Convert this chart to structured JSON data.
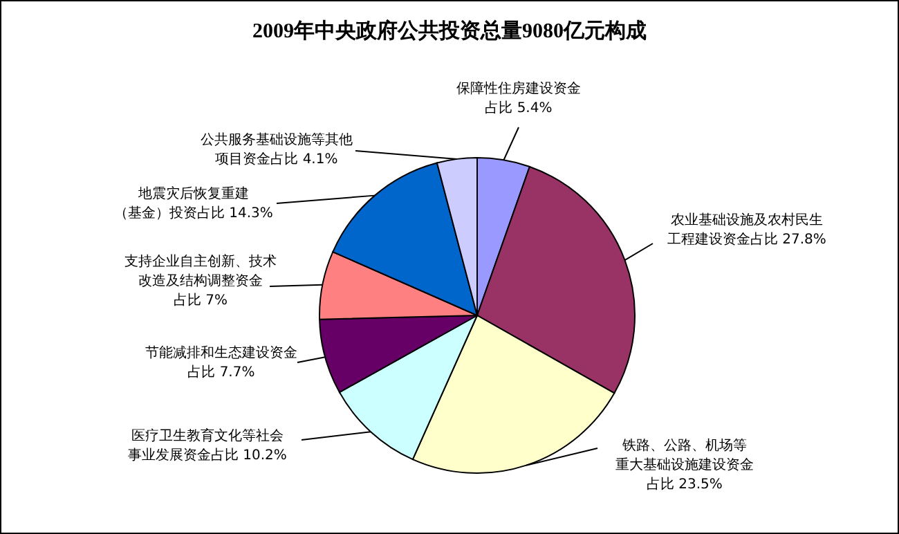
{
  "chart_data": {
    "type": "pie",
    "title": "2009年中央政府公共投资总量9080亿元构成",
    "categories": [
      "保障性住房建设资金占比",
      "农业基础设施及农村民生工程建设资金占比",
      "铁路、公路、机场等重大基础设施建设资金占比",
      "医疗卫生教育文化等社会事业发展资金占比",
      "节能减排和生态建设资金占比",
      "支持企业自主创新、技术改造及结构调整资金占比",
      "地震灾后恢复重建（基金）投资占比",
      "公共服务基础设施等其他项目资金占比"
    ],
    "values": [
      5.4,
      27.8,
      23.5,
      10.2,
      7.7,
      7,
      14.3,
      4.1
    ],
    "value_labels": [
      "5.4%",
      "27.8%",
      "23.5%",
      "10.2%",
      "7.7%",
      "7%",
      "14.3%",
      "4.1%"
    ],
    "colors": [
      "#9999ff",
      "#993366",
      "#ffffcc",
      "#ccffff",
      "#660066",
      "#ff8080",
      "#0066cc",
      "#ccccff"
    ]
  }
}
